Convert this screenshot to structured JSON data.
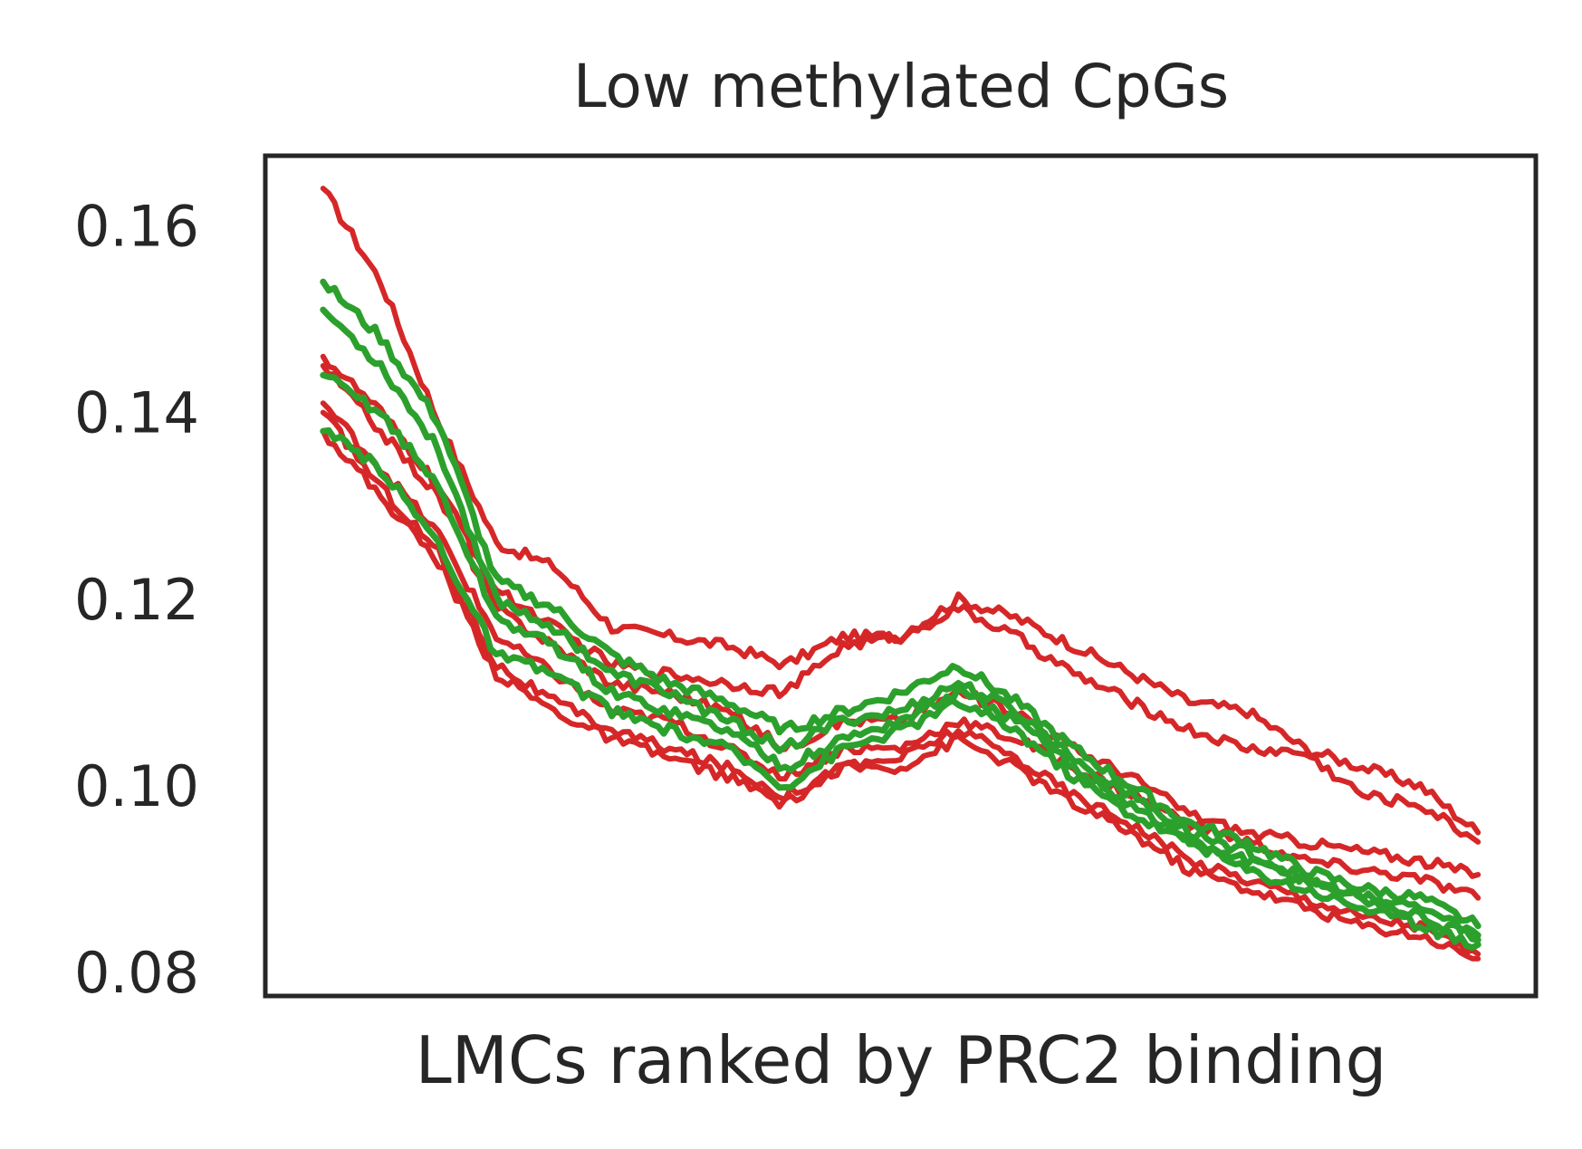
{
  "chart_data": {
    "type": "line",
    "title": "Low methylated CpGs",
    "xlabel": "LMCs ranked by PRC2 binding",
    "ylabel": "",
    "ylim": [
      0.0775,
      0.1675
    ],
    "xlim": [
      -0.05,
      1.05
    ],
    "yticks": [
      0.08,
      0.1,
      0.12,
      0.14,
      0.16
    ],
    "ytick_labels": [
      "0.08",
      "0.10",
      "0.12",
      "0.14",
      "0.16"
    ],
    "xticks": [],
    "grid": false,
    "legend": "none",
    "colors": {
      "red": "#d62728",
      "green": "#2ca02c",
      "axis": "#262626"
    },
    "x": [
      0.0,
      0.05,
      0.1,
      0.15,
      0.2,
      0.25,
      0.3,
      0.35,
      0.4,
      0.45,
      0.5,
      0.55,
      0.6,
      0.65,
      0.7,
      0.75,
      0.8,
      0.85,
      0.9,
      0.95,
      1.0
    ],
    "series": [
      {
        "color": "red",
        "values": [
          0.164,
          0.154,
          0.139,
          0.126,
          0.1235,
          0.117,
          0.116,
          0.115,
          0.113,
          0.116,
          0.116,
          0.12,
          0.118,
          0.115,
          0.112,
          0.109,
          0.108,
          0.104,
          0.102,
          0.1,
          0.095
        ]
      },
      {
        "color": "red",
        "values": [
          0.146,
          0.14,
          0.132,
          0.121,
          0.117,
          0.113,
          0.112,
          0.111,
          0.11,
          0.115,
          0.116,
          0.119,
          0.116,
          0.112,
          0.109,
          0.106,
          0.104,
          0.1035,
          0.099,
          0.098,
          0.094
        ]
      },
      {
        "color": "red",
        "values": [
          0.145,
          0.138,
          0.131,
          0.119,
          0.115,
          0.111,
          0.11,
          0.108,
          0.104,
          0.107,
          0.107,
          0.11,
          0.108,
          0.104,
          0.101,
          0.097,
          0.095,
          0.094,
          0.093,
          0.092,
          0.0905
        ]
      },
      {
        "color": "red",
        "values": [
          0.141,
          0.134,
          0.127,
          0.116,
          0.112,
          0.108,
          0.107,
          0.104,
          0.101,
          0.104,
          0.104,
          0.107,
          0.105,
          0.102,
          0.099,
          0.096,
          0.094,
          0.092,
          0.091,
          0.09,
          0.088
        ]
      },
      {
        "color": "red",
        "values": [
          0.14,
          0.132,
          0.125,
          0.113,
          0.109,
          0.106,
          0.104,
          0.102,
          0.099,
          0.102,
          0.103,
          0.106,
          0.103,
          0.099,
          0.096,
          0.092,
          0.09,
          0.088,
          0.086,
          0.085,
          0.082
        ]
      },
      {
        "color": "red",
        "values": [
          0.138,
          0.131,
          0.124,
          0.112,
          0.108,
          0.105,
          0.103,
          0.101,
          0.098,
          0.102,
          0.102,
          0.105,
          0.102,
          0.098,
          0.095,
          0.091,
          0.089,
          0.087,
          0.085,
          0.084,
          0.0815
        ]
      },
      {
        "color": "green",
        "values": [
          0.154,
          0.148,
          0.139,
          0.122,
          0.119,
          0.114,
          0.111,
          0.109,
          0.106,
          0.108,
          0.11,
          0.113,
          0.109,
          0.104,
          0.1,
          0.096,
          0.094,
          0.091,
          0.089,
          0.088,
          0.085
        ]
      },
      {
        "color": "green",
        "values": [
          0.151,
          0.145,
          0.136,
          0.12,
          0.117,
          0.112,
          0.11,
          0.107,
          0.104,
          0.107,
          0.108,
          0.111,
          0.108,
          0.103,
          0.099,
          0.095,
          0.093,
          0.09,
          0.088,
          0.087,
          0.084
        ]
      },
      {
        "color": "green",
        "values": [
          0.144,
          0.14,
          0.132,
          0.118,
          0.115,
          0.11,
          0.108,
          0.106,
          0.102,
          0.105,
          0.107,
          0.11,
          0.107,
          0.102,
          0.098,
          0.094,
          0.092,
          0.09,
          0.088,
          0.086,
          0.0835
        ]
      },
      {
        "color": "green",
        "values": [
          0.138,
          0.134,
          0.126,
          0.114,
          0.112,
          0.108,
          0.106,
          0.104,
          0.1,
          0.104,
          0.106,
          0.109,
          0.106,
          0.101,
          0.097,
          0.094,
          0.091,
          0.089,
          0.087,
          0.085,
          0.083
        ]
      }
    ]
  }
}
